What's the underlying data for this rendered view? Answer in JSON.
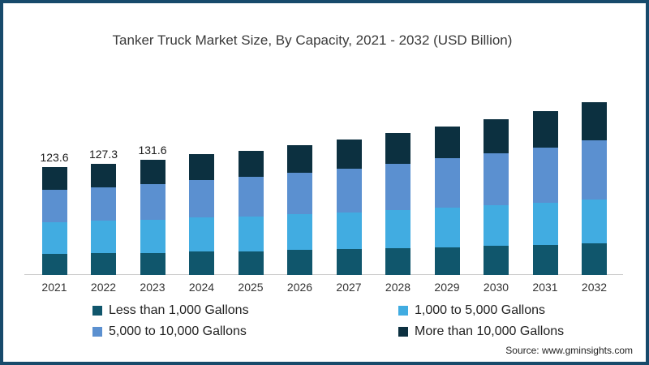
{
  "title": "Tanker Truck Market Size, By Capacity, 2021 - 2032 (USD Billion)",
  "source": "Source: www.gminsights.com",
  "colors": {
    "frame": "#174A6B",
    "axis_line": "#CCCCCC",
    "title_text": "#3A3A3A",
    "label_text": "#1A1A1A"
  },
  "chart_data": {
    "type": "bar",
    "stacked": true,
    "title": "Tanker Truck Market Size, By Capacity, 2021 - 2032 (USD Billion)",
    "xlabel": "",
    "ylabel": "USD Billion",
    "ylim": [
      0,
      210
    ],
    "grid": false,
    "legend_position": "bottom",
    "categories": [
      "2021",
      "2022",
      "2023",
      "2024",
      "2025",
      "2026",
      "2027",
      "2028",
      "2029",
      "2030",
      "2031",
      "2032"
    ],
    "series": [
      {
        "name": "Less than 1,000 Gallons",
        "color": "#10566C",
        "values": [
          24.2,
          24.8,
          25.5,
          26.6,
          27.3,
          28.4,
          29.4,
          30.7,
          31.9,
          33.3,
          34.7,
          36.4
        ]
      },
      {
        "name": "1,000 to 5,000 Gallons",
        "color": "#41ACE1",
        "values": [
          36.5,
          37.1,
          37.9,
          39.2,
          40.0,
          41.3,
          42.3,
          43.9,
          45.3,
          46.9,
          48.4,
          50.4
        ]
      },
      {
        "name": "5,000 to 10,000 Gallons",
        "color": "#5B90D0",
        "values": [
          37.3,
          38.9,
          40.7,
          43.1,
          45.0,
          47.6,
          50.0,
          53.2,
          56.2,
          59.6,
          63.0,
          67.2
        ]
      },
      {
        "name": "More than 10,000 Gallons",
        "color": "#0C3040",
        "values": [
          25.6,
          26.5,
          27.5,
          29.2,
          30.3,
          31.9,
          33.3,
          35.3,
          37.1,
          39.1,
          41.2,
          43.7
        ]
      }
    ],
    "totals": [
      123.6,
      127.3,
      131.6,
      138.1,
      142.6,
      149.2,
      155.0,
      163.1,
      170.5,
      178.9,
      187.3,
      197.7
    ],
    "value_labels": {
      "0": "123.6",
      "1": "127.3",
      "2": "131.6"
    }
  }
}
